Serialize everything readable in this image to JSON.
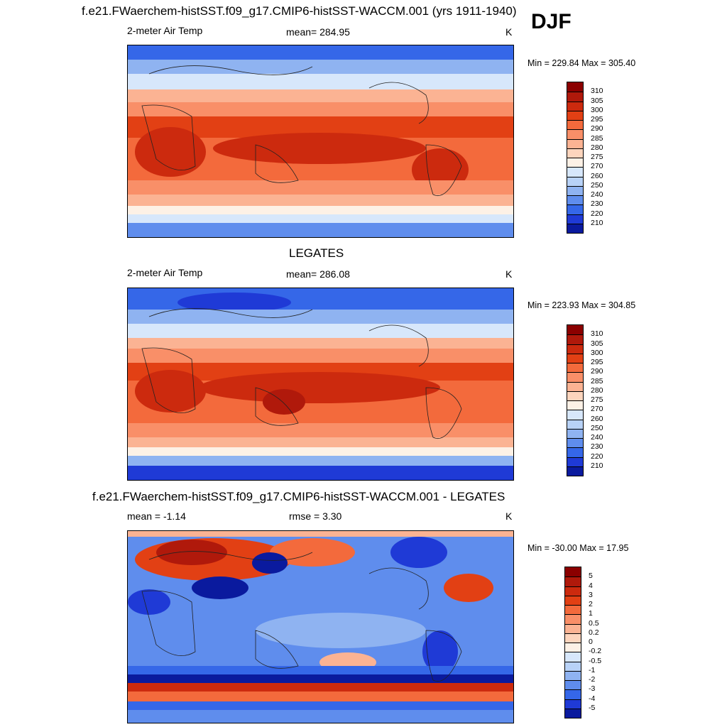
{
  "figure": {
    "season_label": "DJF"
  },
  "panels": [
    {
      "title": "f.e21.FWaerchem-histSST.f09_g17.CMIP6-histSST-WACCM.001 (yrs 1911-1940)",
      "left_label": "2-meter Air Temp",
      "center_label": "mean= 284.95",
      "units": "K",
      "minmax": "Min = 229.84 Max = 305.40",
      "colorbar": {
        "ticks": [
          "310",
          "305",
          "300",
          "295",
          "290",
          "285",
          "280",
          "275",
          "270",
          "260",
          "250",
          "240",
          "230",
          "220",
          "210"
        ],
        "colors": [
          "#8b0000",
          "#b0190b",
          "#cc2a0e",
          "#e24014",
          "#f36a3c",
          "#f98f68",
          "#fbb393",
          "#fdd5bd",
          "#fdf1e6",
          "#d7e7fb",
          "#b8d2f7",
          "#8fb3f1",
          "#5f8ded",
          "#3567e8",
          "#1f3ad6",
          "#0a1a9e"
        ]
      },
      "map_data": {
        "variable": "2-meter Air Temp",
        "units": "K",
        "field": "mean",
        "value": 284.95,
        "min": 229.84,
        "max": 305.4
      }
    },
    {
      "title": "LEGATES",
      "left_label": "2-meter Air Temp",
      "center_label": "mean= 286.08",
      "units": "K",
      "minmax": "Min = 223.93 Max = 304.85",
      "colorbar": {
        "ticks": [
          "310",
          "305",
          "300",
          "295",
          "290",
          "285",
          "280",
          "275",
          "270",
          "260",
          "250",
          "240",
          "230",
          "220",
          "210"
        ],
        "colors": [
          "#8b0000",
          "#b0190b",
          "#cc2a0e",
          "#e24014",
          "#f36a3c",
          "#f98f68",
          "#fbb393",
          "#fdd5bd",
          "#fdf1e6",
          "#d7e7fb",
          "#b8d2f7",
          "#8fb3f1",
          "#5f8ded",
          "#3567e8",
          "#1f3ad6",
          "#0a1a9e"
        ]
      },
      "map_data": {
        "variable": "2-meter Air Temp",
        "units": "K",
        "field": "mean",
        "value": 286.08,
        "min": 223.93,
        "max": 304.85
      }
    },
    {
      "title": "f.e21.FWaerchem-histSST.f09_g17.CMIP6-histSST-WACCM.001 - LEGATES",
      "left_label": "mean =  -1.14",
      "center_label": "rmse =   3.30",
      "units": "K",
      "minmax": "Min = -30.00 Max =  17.95",
      "colorbar": {
        "ticks": [
          "5",
          "4",
          "3",
          "2",
          "1",
          "0.5",
          "0.2",
          "0",
          "-0.2",
          "-0.5",
          "-1",
          "-2",
          "-3",
          "-4",
          "-5"
        ],
        "colors": [
          "#8b0000",
          "#b0190b",
          "#cc2a0e",
          "#e24014",
          "#f36a3c",
          "#f98f68",
          "#fbb393",
          "#fdd5bd",
          "#fdf1e6",
          "#d7e7fb",
          "#b8d2f7",
          "#8fb3f1",
          "#5f8ded",
          "#3567e8",
          "#1f3ad6",
          "#0a1a9e"
        ]
      },
      "map_data": {
        "variable": "difference",
        "units": "K",
        "mean": -1.14,
        "rmse": 3.3,
        "min": -30.0,
        "max": 17.95
      }
    }
  ]
}
